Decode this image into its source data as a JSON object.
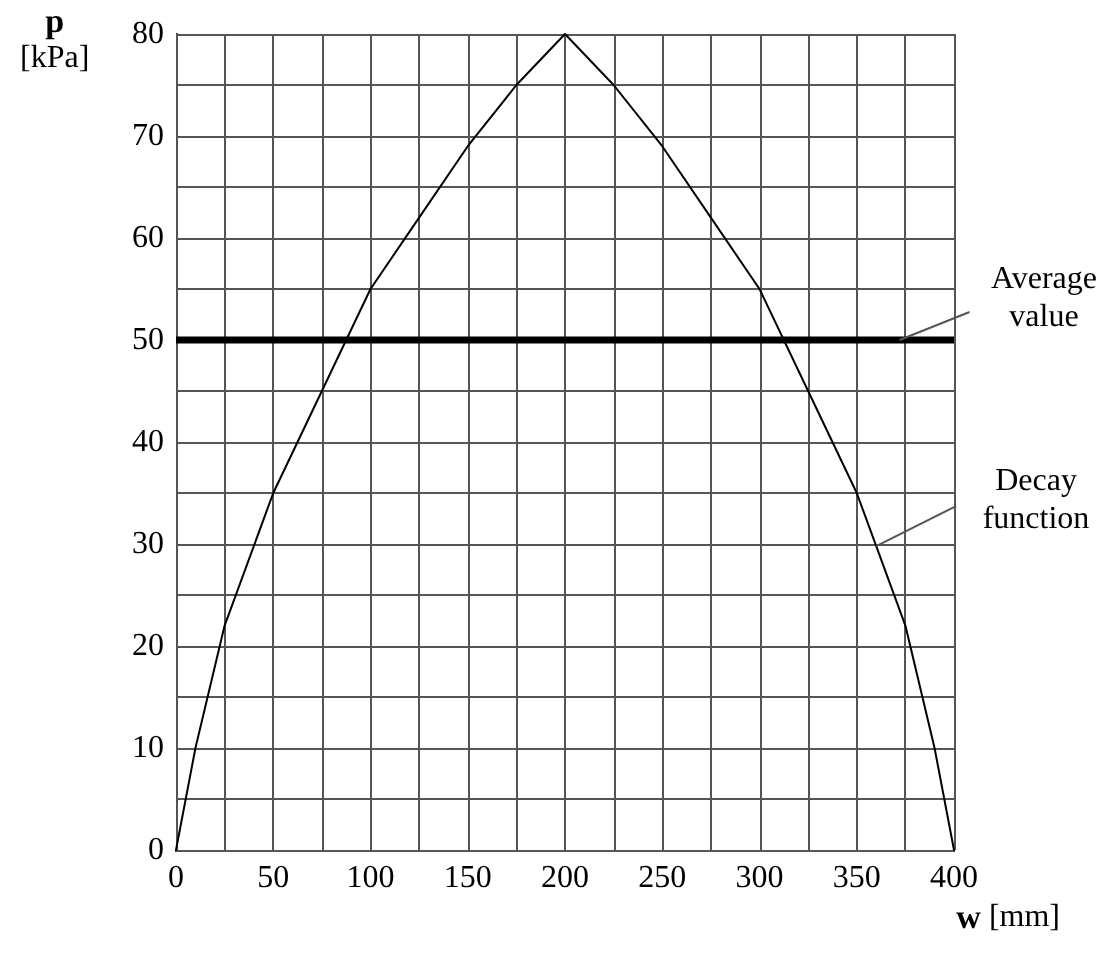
{
  "chart_data": {
    "type": "line",
    "xlabel": "w [mm]",
    "ylabel": "p [kPa]",
    "x": [
      0,
      10,
      25,
      50,
      75,
      100,
      125,
      150,
      175,
      200,
      225,
      250,
      275,
      300,
      325,
      350,
      375,
      390,
      400
    ],
    "series": [
      {
        "name": "Decay function",
        "color": "#000000",
        "values": [
          0,
          10,
          22,
          35,
          45,
          55,
          62,
          69,
          75,
          80,
          75,
          69,
          62,
          55,
          45,
          35,
          22,
          10,
          0
        ]
      }
    ],
    "xlim": [
      0,
      400
    ],
    "ylim": [
      0,
      80
    ],
    "xticks": [
      0,
      {
        "value": 25,
        "label": null
      },
      50,
      {
        "value": 75,
        "label": null
      },
      100,
      {
        "value": 125,
        "label": null
      },
      150,
      {
        "value": 175,
        "label": null
      },
      200,
      {
        "value": 225,
        "label": null
      },
      250,
      {
        "value": 275,
        "label": null
      },
      300,
      {
        "value": 325,
        "label": null
      },
      350,
      {
        "value": 375,
        "label": null
      },
      400
    ],
    "yticks": [
      0,
      {
        "value": 5,
        "label": null
      },
      10,
      {
        "value": 15,
        "label": null
      },
      20,
      {
        "value": 25,
        "label": null
      },
      30,
      {
        "value": 35,
        "label": null
      },
      40,
      {
        "value": 45,
        "label": null
      },
      50,
      {
        "value": 55,
        "label": null
      },
      60,
      {
        "value": 65,
        "label": null
      },
      70,
      {
        "value": 75,
        "label": null
      },
      80
    ],
    "ref_lines": [
      {
        "axis": "y",
        "value": 50,
        "label": "Average value",
        "color": "#000000"
      }
    ],
    "grid": true,
    "legend": false,
    "marker": "none",
    "line_style": "solid"
  }
}
